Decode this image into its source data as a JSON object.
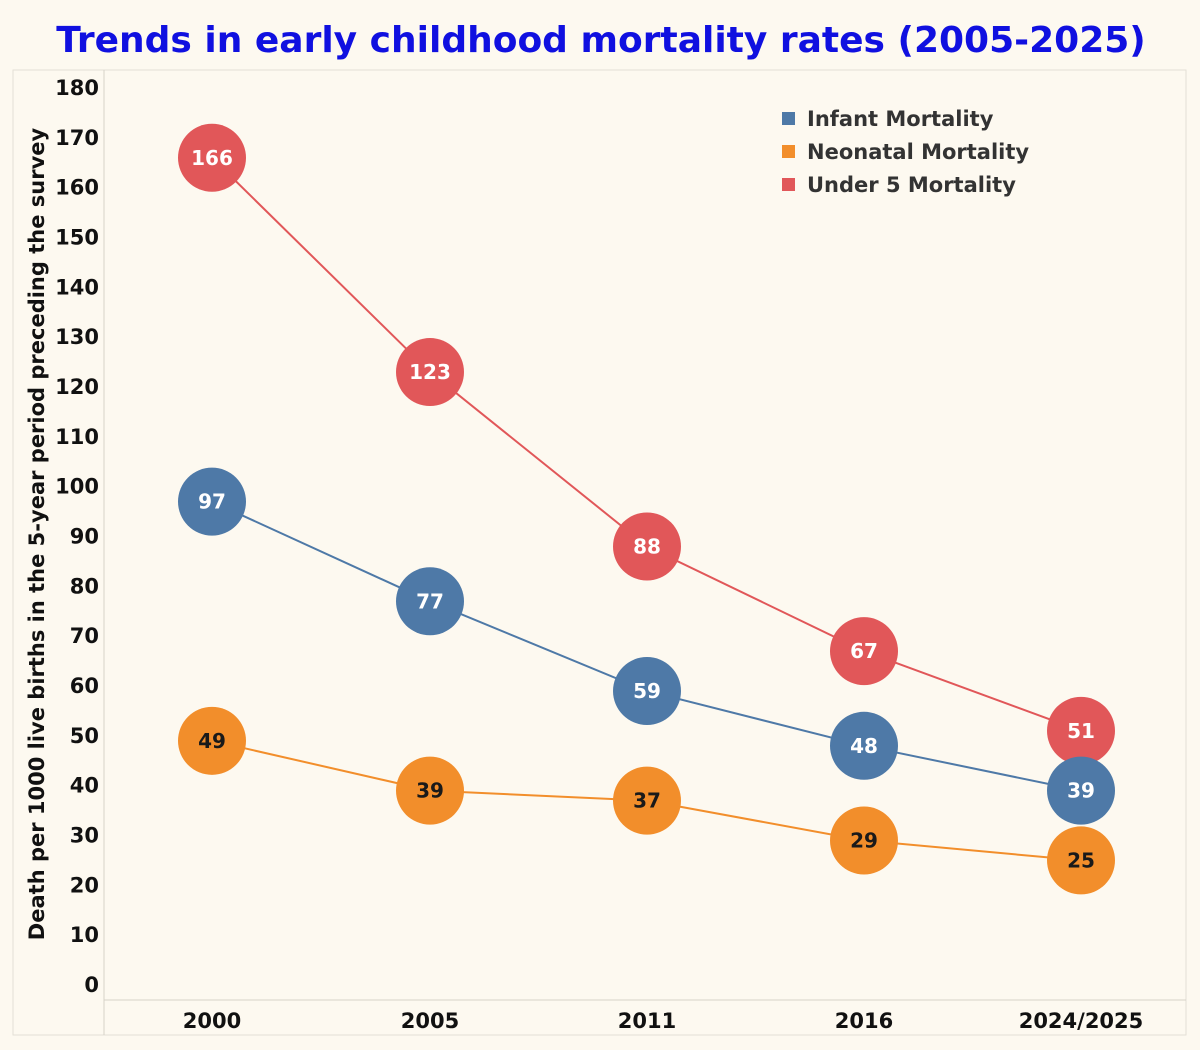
{
  "chart_data": {
    "type": "line",
    "title": "Trends in early childhood mortality rates (2005-2025)",
    "xlabel": "",
    "ylabel": "Death per 1000 live births in the 5-year period preceding the survey",
    "categories": [
      "2000",
      "2005",
      "2011",
      "2016",
      "2024/2025"
    ],
    "ylim": [
      0,
      180
    ],
    "yticks": [
      0,
      10,
      20,
      30,
      40,
      50,
      60,
      70,
      80,
      90,
      100,
      110,
      120,
      130,
      140,
      150,
      160,
      170,
      180
    ],
    "grid": false,
    "legend_position": "top-right",
    "series": [
      {
        "name": "Infant Mortality",
        "color": "#4e79a7",
        "label_color": "#ffffff",
        "values": [
          97,
          77,
          59,
          48,
          39
        ]
      },
      {
        "name": "Neonatal Mortality",
        "color": "#f28e2b",
        "label_color": "#1a1a1a",
        "values": [
          49,
          39,
          37,
          29,
          25
        ]
      },
      {
        "name": "Under 5 Mortality",
        "color": "#e15759",
        "label_color": "#ffffff",
        "values": [
          166,
          123,
          88,
          67,
          51
        ]
      }
    ],
    "title_color": "#1010e0"
  }
}
